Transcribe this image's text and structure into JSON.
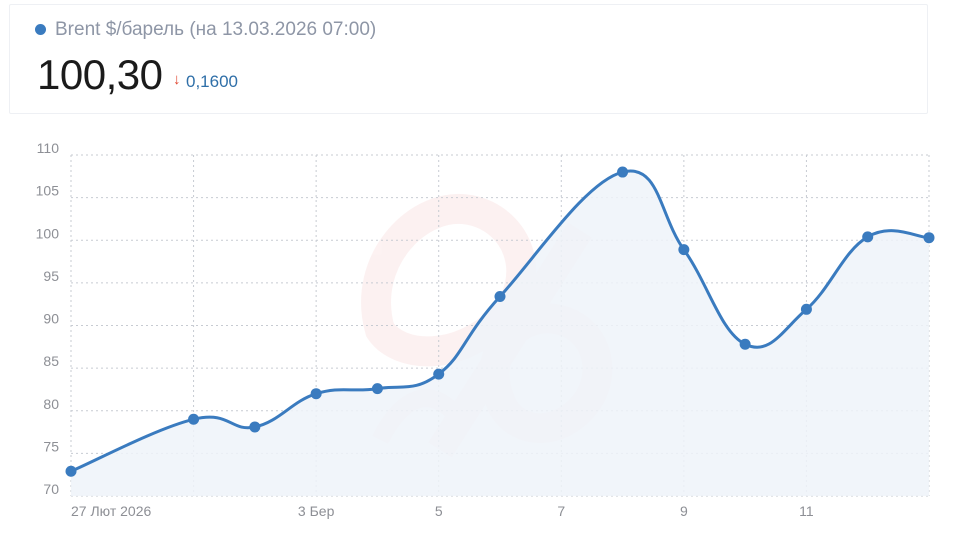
{
  "header": {
    "title": "Brent $/барель (на 13.03.2026 07:00)",
    "price": "100,30",
    "change": "0,1600",
    "change_direction": "down",
    "colors": {
      "accent": "#3a7bbf",
      "down": "#e0452f",
      "change_text": "#2f6fa8"
    }
  },
  "chart_data": {
    "type": "area",
    "y_tick_labels": [
      "110",
      "105",
      "100",
      "95",
      "90",
      "85",
      "80",
      "75",
      "70"
    ],
    "ylim": [
      70,
      110
    ],
    "x_tick_labels": [
      {
        "index": 0,
        "label": "27 Лют 2026"
      },
      {
        "index": 4,
        "label": "3 Бер"
      },
      {
        "index": 6,
        "label": "5"
      },
      {
        "index": 8,
        "label": "7"
      },
      {
        "index": 10,
        "label": "9"
      },
      {
        "index": 12,
        "label": "11"
      }
    ],
    "series": [
      {
        "values": [
          72.9,
          79.0,
          78.1,
          82.0,
          82.6,
          84.3,
          93.4,
          108.0,
          98.9,
          87.8,
          91.9,
          100.4,
          100.3
        ],
        "point_indices": [
          0,
          2,
          3,
          4,
          5,
          6,
          7,
          9,
          10,
          11,
          12,
          13,
          14
        ],
        "color": "#3a7bbf",
        "fill": "#eef3f9"
      }
    ],
    "grid": true,
    "grid_style": "dotted",
    "watermark": "logo"
  }
}
